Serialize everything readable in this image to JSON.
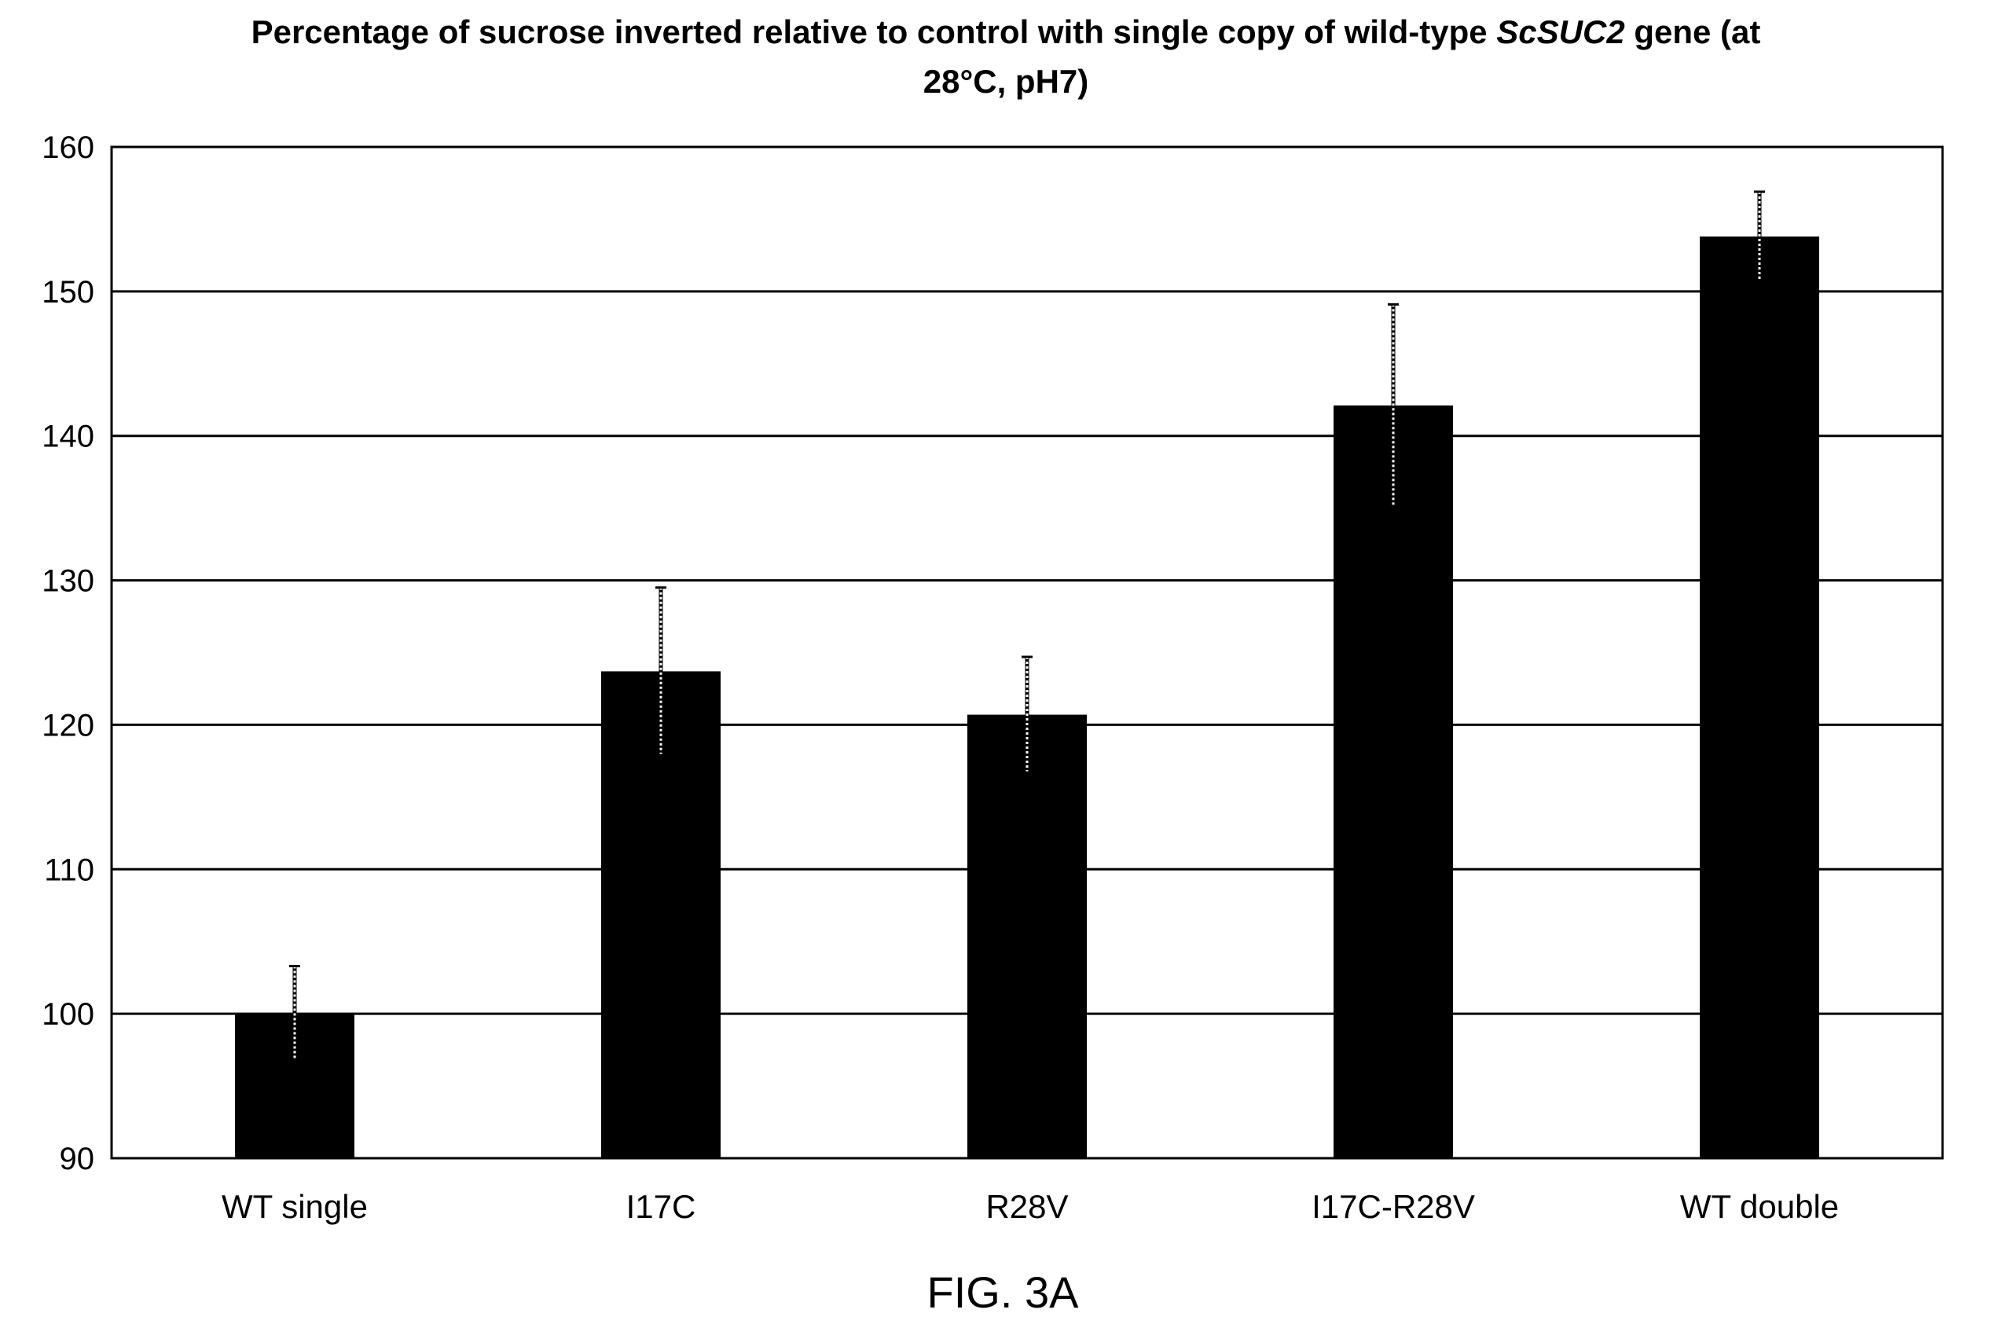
{
  "chart_data": {
    "type": "bar",
    "title_line1_prefix": "Percentage of sucrose inverted relative to control with single copy of wild-type ",
    "title_gene": "ScSUC2",
    "title_line1_suffix": " gene (at",
    "title_line2": "28°C, pH7)",
    "xlabel": "",
    "ylabel": "",
    "ylim": [
      90,
      160
    ],
    "yticks": [
      90,
      100,
      110,
      120,
      130,
      140,
      150,
      160
    ],
    "grid": true,
    "categories": [
      "WT single",
      "I17C",
      "R28V",
      "I17C-R28V",
      "WT double"
    ],
    "values": [
      100,
      123.7,
      120.7,
      142.1,
      153.8
    ],
    "errors": [
      3.3,
      5.8,
      4.0,
      7.0,
      3.1
    ],
    "bar_color": "#000000",
    "error_bar_color": "#ffffff"
  },
  "figure_label": "FIG. 3A"
}
